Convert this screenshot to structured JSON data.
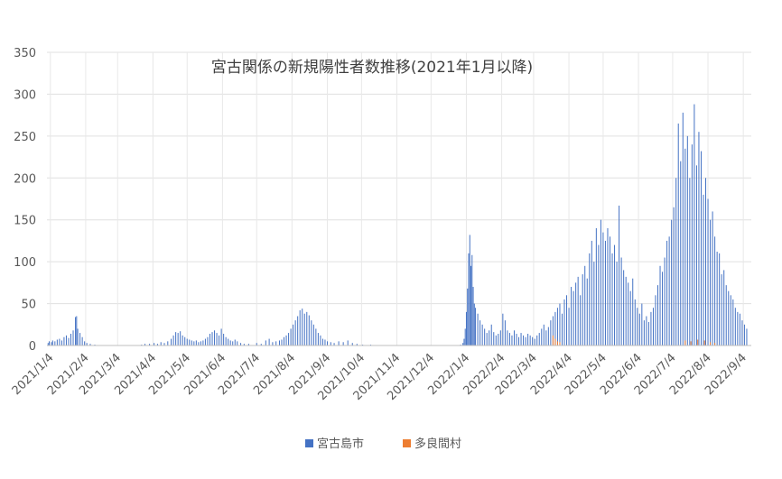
{
  "chart_data": {
    "type": "bar",
    "title": "宮古関係の新規陽性者数推移(2021年1月以降)",
    "xlabel": "",
    "ylabel": "",
    "ylim": [
      0,
      350
    ],
    "yticks": [
      0,
      50,
      100,
      150,
      200,
      250,
      300,
      350
    ],
    "grid": true,
    "legend_position": "bottom",
    "x_range": [
      "2021-01-01",
      "2022-09-11"
    ],
    "xticks": [
      {
        "date": "2021-01-04",
        "label": "2021/1/4"
      },
      {
        "date": "2021-02-04",
        "label": "2021/2/4"
      },
      {
        "date": "2021-03-04",
        "label": "2021/3/4"
      },
      {
        "date": "2021-04-04",
        "label": "2021/4/4"
      },
      {
        "date": "2021-05-04",
        "label": "2021/5/4"
      },
      {
        "date": "2021-06-04",
        "label": "2021/6/4"
      },
      {
        "date": "2021-07-04",
        "label": "2021/7/4"
      },
      {
        "date": "2021-08-04",
        "label": "2021/8/4"
      },
      {
        "date": "2021-09-04",
        "label": "2021/9/4"
      },
      {
        "date": "2021-10-04",
        "label": "2021/10/4"
      },
      {
        "date": "2021-11-04",
        "label": "2021/11/4"
      },
      {
        "date": "2021-12-04",
        "label": "2021/12/4"
      },
      {
        "date": "2022-01-04",
        "label": "2022/1/4"
      },
      {
        "date": "2022-02-04",
        "label": "2022/2/4"
      },
      {
        "date": "2022-03-04",
        "label": "2022/3/4"
      },
      {
        "date": "2022-04-04",
        "label": "2022/4/4"
      },
      {
        "date": "2022-05-04",
        "label": "2022/5/4"
      },
      {
        "date": "2022-06-04",
        "label": "2022/6/4"
      },
      {
        "date": "2022-07-04",
        "label": "2022/7/4"
      },
      {
        "date": "2022-08-04",
        "label": "2022/8/4"
      },
      {
        "date": "2022-09-04",
        "label": "2022/9/4"
      }
    ],
    "series": [
      {
        "name": "宮古島市",
        "color": "#4472C4",
        "points": [
          [
            "2021-01-02",
            3
          ],
          [
            "2021-01-03",
            5
          ],
          [
            "2021-01-05",
            4
          ],
          [
            "2021-01-06",
            6
          ],
          [
            "2021-01-08",
            5
          ],
          [
            "2021-01-10",
            7
          ],
          [
            "2021-01-12",
            8
          ],
          [
            "2021-01-14",
            6
          ],
          [
            "2021-01-16",
            10
          ],
          [
            "2021-01-18",
            12
          ],
          [
            "2021-01-20",
            9
          ],
          [
            "2021-01-22",
            14
          ],
          [
            "2021-01-24",
            18
          ],
          [
            "2021-01-26",
            34
          ],
          [
            "2021-01-27",
            35
          ],
          [
            "2021-01-28",
            20
          ],
          [
            "2021-01-30",
            15
          ],
          [
            "2021-02-01",
            10
          ],
          [
            "2021-02-03",
            5
          ],
          [
            "2021-02-05",
            3
          ],
          [
            "2021-02-08",
            2
          ],
          [
            "2021-02-12",
            1
          ],
          [
            "2021-03-25",
            1
          ],
          [
            "2021-03-28",
            2
          ],
          [
            "2021-04-01",
            2
          ],
          [
            "2021-04-05",
            3
          ],
          [
            "2021-04-08",
            2
          ],
          [
            "2021-04-11",
            4
          ],
          [
            "2021-04-14",
            3
          ],
          [
            "2021-04-17",
            5
          ],
          [
            "2021-04-20",
            8
          ],
          [
            "2021-04-22",
            12
          ],
          [
            "2021-04-24",
            16
          ],
          [
            "2021-04-26",
            15
          ],
          [
            "2021-04-28",
            17
          ],
          [
            "2021-04-30",
            12
          ],
          [
            "2021-05-02",
            10
          ],
          [
            "2021-05-04",
            8
          ],
          [
            "2021-05-06",
            7
          ],
          [
            "2021-05-08",
            6
          ],
          [
            "2021-05-10",
            5
          ],
          [
            "2021-05-12",
            6
          ],
          [
            "2021-05-14",
            4
          ],
          [
            "2021-05-16",
            5
          ],
          [
            "2021-05-18",
            6
          ],
          [
            "2021-05-20",
            8
          ],
          [
            "2021-05-22",
            10
          ],
          [
            "2021-05-24",
            14
          ],
          [
            "2021-05-26",
            16
          ],
          [
            "2021-05-28",
            18
          ],
          [
            "2021-05-30",
            15
          ],
          [
            "2021-06-01",
            12
          ],
          [
            "2021-06-03",
            20
          ],
          [
            "2021-06-05",
            14
          ],
          [
            "2021-06-07",
            10
          ],
          [
            "2021-06-09",
            8
          ],
          [
            "2021-06-11",
            6
          ],
          [
            "2021-06-13",
            5
          ],
          [
            "2021-06-15",
            7
          ],
          [
            "2021-06-17",
            5
          ],
          [
            "2021-06-20",
            3
          ],
          [
            "2021-06-23",
            2
          ],
          [
            "2021-06-27",
            2
          ],
          [
            "2021-07-04",
            3
          ],
          [
            "2021-07-08",
            2
          ],
          [
            "2021-07-12",
            6
          ],
          [
            "2021-07-15",
            8
          ],
          [
            "2021-07-18",
            4
          ],
          [
            "2021-07-21",
            5
          ],
          [
            "2021-07-24",
            6
          ],
          [
            "2021-07-26",
            7
          ],
          [
            "2021-07-28",
            10
          ],
          [
            "2021-07-30",
            12
          ],
          [
            "2021-08-01",
            15
          ],
          [
            "2021-08-03",
            20
          ],
          [
            "2021-08-05",
            25
          ],
          [
            "2021-08-07",
            30
          ],
          [
            "2021-08-09",
            35
          ],
          [
            "2021-08-11",
            42
          ],
          [
            "2021-08-13",
            44
          ],
          [
            "2021-08-15",
            38
          ],
          [
            "2021-08-17",
            40
          ],
          [
            "2021-08-19",
            36
          ],
          [
            "2021-08-21",
            30
          ],
          [
            "2021-08-23",
            25
          ],
          [
            "2021-08-25",
            20
          ],
          [
            "2021-08-27",
            15
          ],
          [
            "2021-08-29",
            12
          ],
          [
            "2021-08-31",
            8
          ],
          [
            "2021-09-02",
            7
          ],
          [
            "2021-09-04",
            5
          ],
          [
            "2021-09-07",
            4
          ],
          [
            "2021-09-10",
            3
          ],
          [
            "2021-09-14",
            5
          ],
          [
            "2021-09-18",
            4
          ],
          [
            "2021-09-22",
            6
          ],
          [
            "2021-09-26",
            3
          ],
          [
            "2021-09-30",
            2
          ],
          [
            "2021-10-05",
            1
          ],
          [
            "2021-10-12",
            1
          ],
          [
            "2021-12-30",
            1
          ],
          [
            "2022-01-01",
            3
          ],
          [
            "2022-01-02",
            8
          ],
          [
            "2022-01-03",
            20
          ],
          [
            "2022-01-04",
            40
          ],
          [
            "2022-01-05",
            68
          ],
          [
            "2022-01-06",
            110
          ],
          [
            "2022-01-07",
            132
          ],
          [
            "2022-01-08",
            95
          ],
          [
            "2022-01-09",
            108
          ],
          [
            "2022-01-10",
            70
          ],
          [
            "2022-01-11",
            50
          ],
          [
            "2022-01-12",
            45
          ],
          [
            "2022-01-14",
            38
          ],
          [
            "2022-01-16",
            30
          ],
          [
            "2022-01-18",
            25
          ],
          [
            "2022-01-20",
            20
          ],
          [
            "2022-01-22",
            15
          ],
          [
            "2022-01-24",
            18
          ],
          [
            "2022-01-26",
            25
          ],
          [
            "2022-01-28",
            16
          ],
          [
            "2022-01-30",
            12
          ],
          [
            "2022-02-01",
            14
          ],
          [
            "2022-02-03",
            18
          ],
          [
            "2022-02-05",
            38
          ],
          [
            "2022-02-07",
            30
          ],
          [
            "2022-02-09",
            18
          ],
          [
            "2022-02-11",
            15
          ],
          [
            "2022-02-13",
            12
          ],
          [
            "2022-02-15",
            18
          ],
          [
            "2022-02-17",
            14
          ],
          [
            "2022-02-19",
            10
          ],
          [
            "2022-02-21",
            15
          ],
          [
            "2022-02-23",
            12
          ],
          [
            "2022-02-25",
            10
          ],
          [
            "2022-02-27",
            14
          ],
          [
            "2022-03-01",
            12
          ],
          [
            "2022-03-03",
            10
          ],
          [
            "2022-03-05",
            8
          ],
          [
            "2022-03-07",
            12
          ],
          [
            "2022-03-09",
            15
          ],
          [
            "2022-03-11",
            20
          ],
          [
            "2022-03-13",
            25
          ],
          [
            "2022-03-15",
            18
          ],
          [
            "2022-03-17",
            22
          ],
          [
            "2022-03-19",
            30
          ],
          [
            "2022-03-21",
            35
          ],
          [
            "2022-03-23",
            40
          ],
          [
            "2022-03-25",
            45
          ],
          [
            "2022-03-27",
            50
          ],
          [
            "2022-03-29",
            38
          ],
          [
            "2022-03-31",
            55
          ],
          [
            "2022-04-02",
            60
          ],
          [
            "2022-04-04",
            45
          ],
          [
            "2022-04-06",
            70
          ],
          [
            "2022-04-08",
            65
          ],
          [
            "2022-04-10",
            75
          ],
          [
            "2022-04-12",
            82
          ],
          [
            "2022-04-14",
            60
          ],
          [
            "2022-04-16",
            85
          ],
          [
            "2022-04-18",
            95
          ],
          [
            "2022-04-20",
            80
          ],
          [
            "2022-04-22",
            110
          ],
          [
            "2022-04-24",
            125
          ],
          [
            "2022-04-26",
            100
          ],
          [
            "2022-04-28",
            140
          ],
          [
            "2022-04-30",
            120
          ],
          [
            "2022-05-02",
            150
          ],
          [
            "2022-05-04",
            135
          ],
          [
            "2022-05-06",
            125
          ],
          [
            "2022-05-08",
            140
          ],
          [
            "2022-05-10",
            130
          ],
          [
            "2022-05-12",
            110
          ],
          [
            "2022-05-14",
            120
          ],
          [
            "2022-05-16",
            100
          ],
          [
            "2022-05-18",
            167
          ],
          [
            "2022-05-20",
            105
          ],
          [
            "2022-05-22",
            90
          ],
          [
            "2022-05-24",
            82
          ],
          [
            "2022-05-26",
            75
          ],
          [
            "2022-05-28",
            65
          ],
          [
            "2022-05-30",
            80
          ],
          [
            "2022-06-01",
            55
          ],
          [
            "2022-06-03",
            45
          ],
          [
            "2022-06-05",
            38
          ],
          [
            "2022-06-07",
            50
          ],
          [
            "2022-06-09",
            30
          ],
          [
            "2022-06-11",
            35
          ],
          [
            "2022-06-13",
            28
          ],
          [
            "2022-06-15",
            40
          ],
          [
            "2022-06-17",
            45
          ],
          [
            "2022-06-19",
            60
          ],
          [
            "2022-06-21",
            72
          ],
          [
            "2022-06-23",
            95
          ],
          [
            "2022-06-25",
            88
          ],
          [
            "2022-06-27",
            105
          ],
          [
            "2022-06-29",
            125
          ],
          [
            "2022-07-01",
            130
          ],
          [
            "2022-07-03",
            150
          ],
          [
            "2022-07-05",
            165
          ],
          [
            "2022-07-07",
            200
          ],
          [
            "2022-07-09",
            265
          ],
          [
            "2022-07-11",
            220
          ],
          [
            "2022-07-13",
            278
          ],
          [
            "2022-07-15",
            235
          ],
          [
            "2022-07-17",
            250
          ],
          [
            "2022-07-19",
            200
          ],
          [
            "2022-07-21",
            240
          ],
          [
            "2022-07-23",
            288
          ],
          [
            "2022-07-25",
            215
          ],
          [
            "2022-07-27",
            255
          ],
          [
            "2022-07-29",
            232
          ],
          [
            "2022-07-31",
            180
          ],
          [
            "2022-08-02",
            200
          ],
          [
            "2022-08-04",
            175
          ],
          [
            "2022-08-06",
            150
          ],
          [
            "2022-08-08",
            160
          ],
          [
            "2022-08-10",
            130
          ],
          [
            "2022-08-12",
            112
          ],
          [
            "2022-08-14",
            110
          ],
          [
            "2022-08-16",
            85
          ],
          [
            "2022-08-18",
            90
          ],
          [
            "2022-08-20",
            72
          ],
          [
            "2022-08-22",
            65
          ],
          [
            "2022-08-24",
            60
          ],
          [
            "2022-08-26",
            55
          ],
          [
            "2022-08-28",
            45
          ],
          [
            "2022-08-30",
            40
          ],
          [
            "2022-09-01",
            38
          ],
          [
            "2022-09-03",
            30
          ],
          [
            "2022-09-05",
            25
          ],
          [
            "2022-09-07",
            20
          ]
        ]
      },
      {
        "name": "多良間村",
        "color": "#ED7D31",
        "points": [
          [
            "2022-03-21",
            12
          ],
          [
            "2022-03-23",
            8
          ],
          [
            "2022-03-25",
            5
          ],
          [
            "2022-03-27",
            4
          ],
          [
            "2022-07-15",
            6
          ],
          [
            "2022-07-20",
            5
          ],
          [
            "2022-07-26",
            7
          ],
          [
            "2022-08-01",
            6
          ],
          [
            "2022-08-06",
            4
          ],
          [
            "2022-08-10",
            3
          ]
        ]
      }
    ]
  }
}
